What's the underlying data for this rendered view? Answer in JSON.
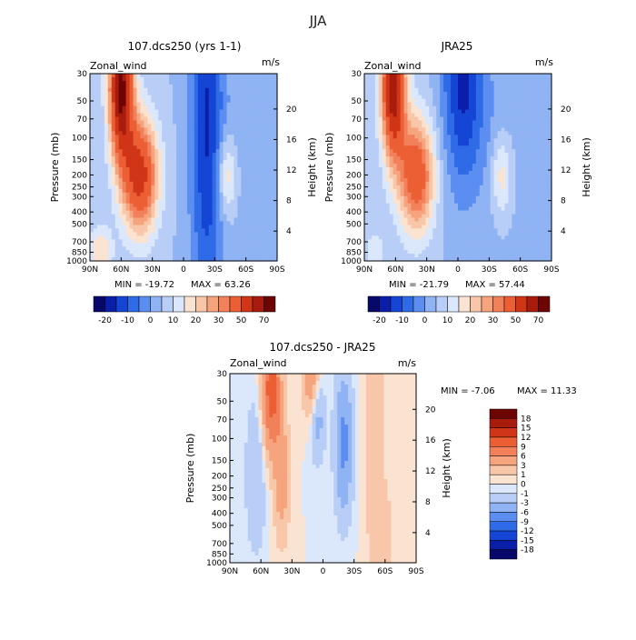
{
  "season": "JJA",
  "colors": {
    "neg": [
      "#08086b",
      "#0a1ea8",
      "#1445d4",
      "#2f6be6",
      "#5b8ef0",
      "#8fb3f3",
      "#b8cef6",
      "#dbe7fa"
    ],
    "pos": [
      "#fbe3d2",
      "#f8c6a8",
      "#f5a47e",
      "#f2805a",
      "#ec5e34",
      "#cf3516",
      "#a71c0c",
      "#6e0505"
    ],
    "main_levels": [
      -20,
      -10,
      0,
      10,
      20,
      30,
      50,
      70
    ]
  },
  "chart_data": [
    {
      "type": "contour",
      "title": "107.dcs250 (yrs 1-1)",
      "variable": "Zonal_wind",
      "units": "m/s",
      "xlabel": "",
      "ylabel": "Pressure (mb)",
      "y2label": "Height (km)",
      "x_ticks": [
        "90N",
        "60N",
        "30N",
        "0",
        "30S",
        "60S",
        "90S"
      ],
      "y_ticks": [
        "30",
        "50",
        "70",
        "100",
        "150",
        "200",
        "250",
        "300",
        "400",
        "500",
        "700",
        "850",
        "1000"
      ],
      "y2_ticks": [
        "4",
        "8",
        "12",
        "16",
        "20"
      ],
      "ylim": [
        1000,
        30
      ],
      "min_label": "MIN = -19.72",
      "max_label": "MAX = 63.26",
      "colorbar_labels": [
        "-20",
        "-10",
        "0",
        "10",
        "20",
        "30",
        "50",
        "70"
      ],
      "features": [
        {
          "lat": -22,
          "p": 60,
          "value": -19.7,
          "sx": 11,
          "sy": 3.0
        },
        {
          "lat": -45,
          "p": 150,
          "value": -5,
          "sx": 14,
          "sy": 1.0
        },
        {
          "lat": 42,
          "p": 200,
          "value": 45,
          "sx": 12,
          "sy": 0.75
        },
        {
          "lat": 60,
          "p": 40,
          "value": 63.3,
          "sx": 8,
          "sy": 0.9
        },
        {
          "lat": -42,
          "p": 200,
          "value": 18,
          "sx": 7,
          "sy": 0.55
        },
        {
          "lat": 80,
          "p": 850,
          "value": 15,
          "sx": 8,
          "sy": 0.35
        }
      ]
    },
    {
      "type": "contour",
      "title": "JRA25",
      "variable": "Zonal_wind",
      "units": "m/s",
      "xlabel": "",
      "ylabel": "Pressure (mb)",
      "y2label": "Height (km)",
      "x_ticks": [
        "90N",
        "60N",
        "30N",
        "0",
        "30S",
        "60S",
        "90S"
      ],
      "y_ticks": [
        "30",
        "50",
        "70",
        "100",
        "150",
        "200",
        "250",
        "300",
        "400",
        "500",
        "700",
        "850",
        "1000"
      ],
      "y2_ticks": [
        "4",
        "8",
        "12",
        "16",
        "20"
      ],
      "ylim": [
        1000,
        30
      ],
      "min_label": "MIN = -21.79",
      "max_label": "MAX = 57.44",
      "colorbar_labels": [
        "-20",
        "-10",
        "0",
        "10",
        "20",
        "30",
        "50",
        "70"
      ],
      "features": [
        {
          "lat": -5,
          "p": 35,
          "value": -21.8,
          "sx": 14,
          "sy": 1.4
        },
        {
          "lat": -40,
          "p": 120,
          "value": -4,
          "sx": 14,
          "sy": 1.2
        },
        {
          "lat": 40,
          "p": 200,
          "value": 38,
          "sx": 12,
          "sy": 0.75
        },
        {
          "lat": 62,
          "p": 40,
          "value": 57.4,
          "sx": 8,
          "sy": 0.9
        },
        {
          "lat": -42,
          "p": 200,
          "value": 15,
          "sx": 7,
          "sy": 0.55
        },
        {
          "lat": 80,
          "p": 850,
          "value": 8,
          "sx": 8,
          "sy": 0.35
        }
      ]
    },
    {
      "type": "contour",
      "title": "107.dcs250 - JRA25",
      "variable": "Zonal_wind",
      "units": "m/s",
      "xlabel": "",
      "ylabel": "Pressure (mb)",
      "y2label": "Height (km)",
      "x_ticks": [
        "90N",
        "60N",
        "30N",
        "0",
        "30S",
        "60S",
        "90S"
      ],
      "y_ticks": [
        "30",
        "50",
        "70",
        "100",
        "150",
        "200",
        "250",
        "300",
        "400",
        "500",
        "700",
        "850",
        "1000"
      ],
      "y2_ticks": [
        "4",
        "8",
        "12",
        "16",
        "20"
      ],
      "ylim": [
        1000,
        30
      ],
      "min_label": "MIN =   -7.06",
      "max_label": "MAX =   11.33",
      "colorbar_labels": [
        "18",
        "15",
        "12",
        "9",
        "6",
        "3",
        "1",
        "0",
        "-1",
        "-3",
        "-6",
        "-9",
        "-12",
        "-15",
        "-18"
      ],
      "levels": [
        -18,
        -15,
        -12,
        -9,
        -6,
        -3,
        -1,
        0,
        1,
        3,
        6,
        9,
        12,
        15,
        18
      ],
      "features": [
        {
          "lat": 50,
          "p": 40,
          "value": 11.3,
          "sx": 6,
          "sy": 0.8
        },
        {
          "lat": 10,
          "p": 35,
          "value": 6,
          "sx": 6,
          "sy": 0.5
        },
        {
          "lat": -20,
          "p": 110,
          "value": -7,
          "sx": 6,
          "sy": 0.9
        },
        {
          "lat": -50,
          "p": 120,
          "value": 2.5,
          "sx": 7,
          "sy": 1.6
        },
        {
          "lat": 5,
          "p": 60,
          "value": -5,
          "sx": 5,
          "sy": 0.6
        },
        {
          "lat": 40,
          "p": 200,
          "value": 5,
          "sx": 5,
          "sy": 0.8
        },
        {
          "lat": 65,
          "p": 200,
          "value": -3,
          "sx": 7,
          "sy": 1.0
        },
        {
          "lat": -60,
          "p": 600,
          "value": 2,
          "sx": 6,
          "sy": 0.5
        }
      ]
    }
  ]
}
